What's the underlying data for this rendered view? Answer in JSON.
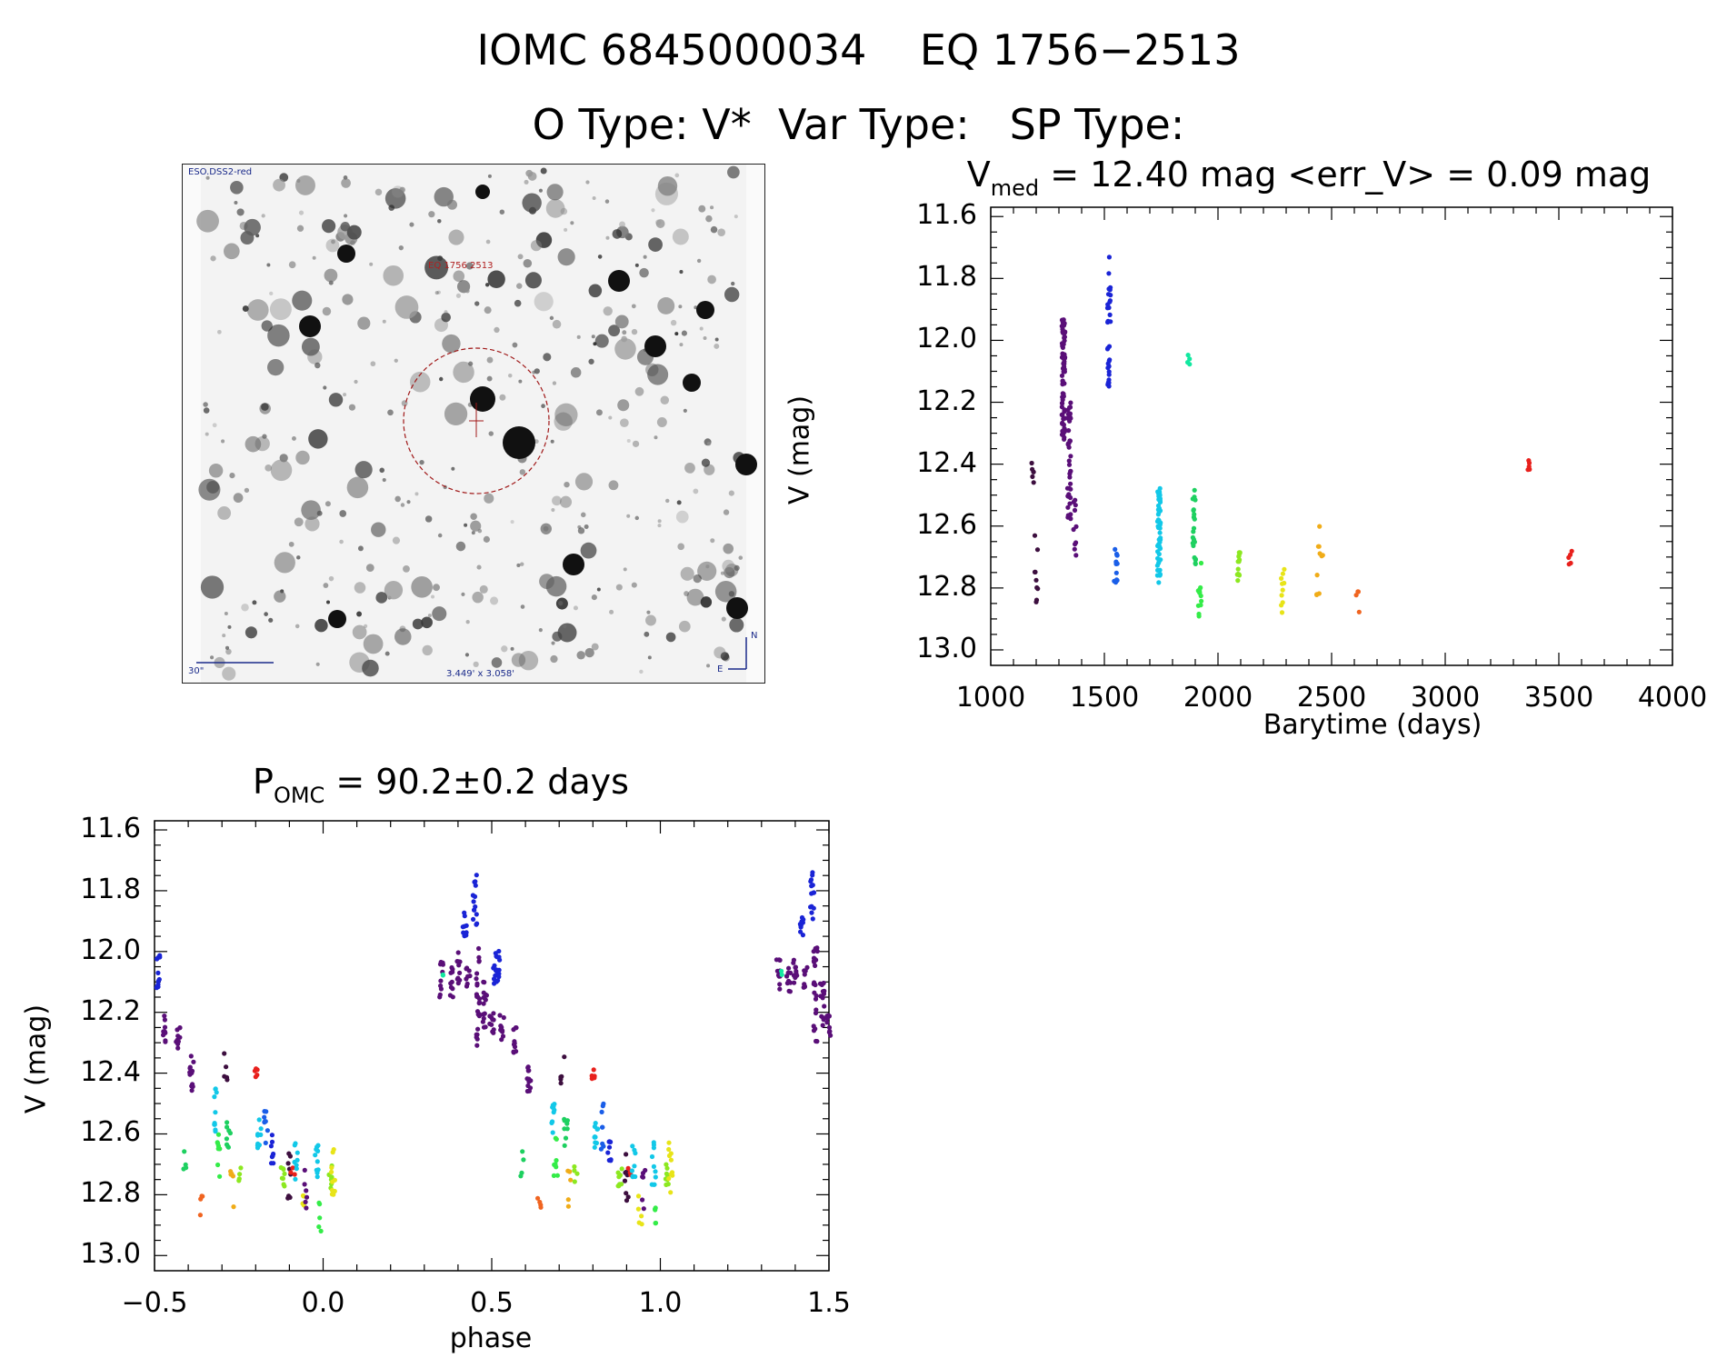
{
  "header": {
    "line1": "IOMC 6845000034    EQ 1756−2513",
    "line2": "O Type: V*  Var Type:   SP Type:"
  },
  "finder": {
    "survey_label": "ESO.DSS2-red",
    "target_label": "EQ 1756 2513",
    "scale_label": "30\"",
    "fov_label": "3.449' x 3.058'",
    "north_label": "N",
    "east_label": "E"
  },
  "colors": {
    "series": [
      "#3d0f3f",
      "#5a0f78",
      "#1a24d6",
      "#1a5ee8",
      "#12c8e8",
      "#1ed060",
      "#34ec48",
      "#8ce820",
      "#e8e418",
      "#f0ac18",
      "#f06420",
      "#e8201c",
      "#12e8a0"
    ]
  },
  "chart_data": [
    {
      "type": "scatter",
      "title_main": "V",
      "title_sub": "med",
      "title_rest": " = 12.40 mag <err_V> = 0.09 mag",
      "xlabel": "Barytime (days)",
      "ylabel": "V (mag)",
      "xlim": [
        1000,
        4000
      ],
      "ylim": [
        13.05,
        11.57
      ],
      "xticks": [
        1000,
        1500,
        2000,
        2500,
        3000,
        3500,
        4000
      ],
      "yticks": [
        11.6,
        11.8,
        12.0,
        12.2,
        12.4,
        12.6,
        12.8,
        13.0
      ],
      "groups": [
        {
          "x": 1185,
          "ymin": 12.32,
          "ymax": 12.46,
          "n": 6,
          "c": 0
        },
        {
          "x": 1200,
          "ymin": 12.63,
          "ymax": 12.85,
          "n": 9,
          "c": 0
        },
        {
          "x": 1320,
          "ymin": 11.93,
          "ymax": 12.32,
          "n": 70,
          "c": 1
        },
        {
          "x": 1345,
          "ymin": 12.2,
          "ymax": 12.58,
          "n": 40,
          "c": 1
        },
        {
          "x": 1370,
          "ymin": 12.5,
          "ymax": 12.7,
          "n": 10,
          "c": 1
        },
        {
          "x": 1520,
          "ymin": 11.73,
          "ymax": 12.15,
          "n": 32,
          "c": 2
        },
        {
          "x": 1550,
          "ymin": 12.64,
          "ymax": 12.8,
          "n": 12,
          "c": 3
        },
        {
          "x": 1740,
          "ymin": 12.46,
          "ymax": 12.79,
          "n": 55,
          "c": 4
        },
        {
          "x": 1870,
          "ymin": 12.04,
          "ymax": 12.08,
          "n": 4,
          "c": 12
        },
        {
          "x": 1895,
          "ymin": 12.48,
          "ymax": 12.73,
          "n": 22,
          "c": 5
        },
        {
          "x": 1920,
          "ymin": 12.7,
          "ymax": 12.92,
          "n": 12,
          "c": 6
        },
        {
          "x": 2090,
          "ymin": 12.68,
          "ymax": 12.78,
          "n": 14,
          "c": 7
        },
        {
          "x": 2285,
          "ymin": 12.72,
          "ymax": 12.9,
          "n": 10,
          "c": 8
        },
        {
          "x": 2440,
          "ymin": 12.6,
          "ymax": 12.84,
          "n": 7,
          "c": 9
        },
        {
          "x": 2455,
          "ymin": 12.67,
          "ymax": 12.7,
          "n": 3,
          "c": 9
        },
        {
          "x": 2615,
          "ymin": 12.8,
          "ymax": 12.89,
          "n": 4,
          "c": 10
        },
        {
          "x": 3365,
          "ymin": 12.37,
          "ymax": 12.42,
          "n": 5,
          "c": 11
        },
        {
          "x": 3550,
          "ymin": 12.68,
          "ymax": 12.73,
          "n": 5,
          "c": 11
        }
      ]
    },
    {
      "type": "scatter",
      "title_main": "P",
      "title_sub": "OMC",
      "title_rest": " = 90.2±0.2 days",
      "xlabel": "phase",
      "ylabel": "V (mag)",
      "xlim": [
        -0.5,
        1.5
      ],
      "ylim": [
        13.05,
        11.57
      ],
      "xticks": [
        -0.5,
        0.0,
        0.5,
        1.0,
        1.5
      ],
      "xtick_labels": [
        "−0.5",
        "0.0",
        "0.5",
        "1.0",
        "1.5"
      ],
      "yticks": [
        11.6,
        11.8,
        12.0,
        12.2,
        12.4,
        12.6,
        12.8,
        13.0
      ],
      "period_repeat": 1.0,
      "groups": [
        {
          "x": -0.49,
          "ymin": 12.0,
          "ymax": 12.12,
          "n": 12,
          "c": 2
        },
        {
          "x": -0.47,
          "ymin": 12.2,
          "ymax": 12.3,
          "n": 10,
          "c": 1
        },
        {
          "x": -0.43,
          "ymin": 12.25,
          "ymax": 12.36,
          "n": 10,
          "c": 1
        },
        {
          "x": -0.39,
          "ymin": 12.33,
          "ymax": 12.46,
          "n": 12,
          "c": 1
        },
        {
          "x": -0.41,
          "ymin": 12.65,
          "ymax": 12.75,
          "n": 4,
          "c": 5
        },
        {
          "x": -0.36,
          "ymin": 12.8,
          "ymax": 12.89,
          "n": 4,
          "c": 10
        },
        {
          "x": -0.32,
          "ymin": 12.45,
          "ymax": 12.6,
          "n": 10,
          "c": 4
        },
        {
          "x": -0.31,
          "ymin": 12.6,
          "ymax": 12.75,
          "n": 8,
          "c": 6
        },
        {
          "x": -0.29,
          "ymin": 12.32,
          "ymax": 12.44,
          "n": 5,
          "c": 0
        },
        {
          "x": -0.28,
          "ymin": 12.55,
          "ymax": 12.65,
          "n": 8,
          "c": 5
        },
        {
          "x": -0.27,
          "ymin": 12.7,
          "ymax": 12.84,
          "n": 5,
          "c": 9
        },
        {
          "x": -0.25,
          "ymin": 12.7,
          "ymax": 12.76,
          "n": 4,
          "c": 7
        },
        {
          "x": -0.2,
          "ymin": 12.38,
          "ymax": 12.42,
          "n": 5,
          "c": 11
        },
        {
          "x": -0.19,
          "ymin": 12.55,
          "ymax": 12.65,
          "n": 10,
          "c": 4
        },
        {
          "x": -0.17,
          "ymin": 12.5,
          "ymax": 12.66,
          "n": 8,
          "c": 3
        },
        {
          "x": -0.15,
          "ymin": 12.6,
          "ymax": 12.7,
          "n": 8,
          "c": 2
        },
        {
          "x": -0.12,
          "ymin": 12.7,
          "ymax": 12.78,
          "n": 8,
          "c": 7
        },
        {
          "x": -0.1,
          "ymin": 12.66,
          "ymax": 12.82,
          "n": 8,
          "c": 0
        },
        {
          "x": -0.09,
          "ymin": 12.7,
          "ymax": 12.74,
          "n": 3,
          "c": 11
        },
        {
          "x": -0.08,
          "ymin": 12.62,
          "ymax": 12.76,
          "n": 8,
          "c": 4
        },
        {
          "x": -0.06,
          "ymin": 12.8,
          "ymax": 12.9,
          "n": 5,
          "c": 8
        },
        {
          "x": -0.05,
          "ymin": 12.7,
          "ymax": 12.85,
          "n": 6,
          "c": 1
        },
        {
          "x": -0.02,
          "ymin": 12.62,
          "ymax": 12.77,
          "n": 10,
          "c": 4
        },
        {
          "x": -0.01,
          "ymin": 12.82,
          "ymax": 12.92,
          "n": 5,
          "c": 6
        },
        {
          "x": 0.02,
          "ymin": 12.7,
          "ymax": 12.78,
          "n": 8,
          "c": 7
        },
        {
          "x": 0.03,
          "ymin": 12.62,
          "ymax": 12.8,
          "n": 10,
          "c": 8
        },
        {
          "x": 0.35,
          "ymin": 12.02,
          "ymax": 12.16,
          "n": 10,
          "c": 1
        },
        {
          "x": 0.36,
          "ymin": 12.06,
          "ymax": 12.08,
          "n": 2,
          "c": 12
        },
        {
          "x": 0.38,
          "ymin": 12.05,
          "ymax": 12.15,
          "n": 10,
          "c": 1
        },
        {
          "x": 0.4,
          "ymin": 12.0,
          "ymax": 12.12,
          "n": 10,
          "c": 1
        },
        {
          "x": 0.42,
          "ymin": 11.86,
          "ymax": 11.95,
          "n": 10,
          "c": 2
        },
        {
          "x": 0.43,
          "ymin": 12.05,
          "ymax": 12.12,
          "n": 8,
          "c": 1
        },
        {
          "x": 0.45,
          "ymin": 11.74,
          "ymax": 11.92,
          "n": 14,
          "c": 2
        },
        {
          "x": 0.46,
          "ymin": 11.95,
          "ymax": 12.33,
          "n": 24,
          "c": 1
        },
        {
          "x": 0.48,
          "ymin": 12.1,
          "ymax": 12.25,
          "n": 14,
          "c": 1
        },
        {
          "x": 0.5,
          "ymin": 12.2,
          "ymax": 12.28,
          "n": 10,
          "c": 1
        },
        {
          "x": 0.52,
          "ymin": 11.99,
          "ymax": 12.12,
          "n": 8,
          "c": 2
        }
      ]
    }
  ]
}
